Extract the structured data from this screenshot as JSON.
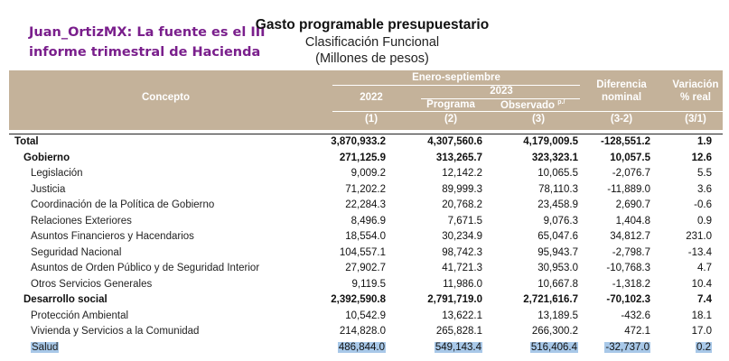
{
  "overlay": {
    "line1": "Juan_OrtizMX: La fuente es el III",
    "line2": "informe trimestral de Hacienda"
  },
  "title": {
    "main": "Gasto programable presupuestario",
    "sub1": "Clasificación Funcional",
    "sub2": "(Millones de pesos)"
  },
  "header": {
    "concepto": "Concepto",
    "period": "Enero-septiembre",
    "year2022": "2022",
    "year2023": "2023",
    "programa": "Programa",
    "observado": "Observado",
    "observado_sup": "p./",
    "diferencia1": "Diferencia",
    "diferencia2": "nominal",
    "variacion1": "Variación",
    "variacion2": "% real",
    "n1": "(1)",
    "n2": "(2)",
    "n3": "(3)",
    "n4": "(3-2)",
    "n5": "(3/1)"
  },
  "rows": [
    {
      "label": "Total",
      "v2022": "3,870,933.2",
      "programa": "4,307,560.6",
      "observado": "4,179,009.5",
      "diferencia": "-128,551.2",
      "variacion": "1.9"
    },
    {
      "label": "Gobierno",
      "v2022": "271,125.9",
      "programa": "313,265.7",
      "observado": "323,323.1",
      "diferencia": "10,057.5",
      "variacion": "12.6"
    },
    {
      "label": "Legislación",
      "v2022": "9,009.2",
      "programa": "12,142.2",
      "observado": "10,065.5",
      "diferencia": "-2,076.7",
      "variacion": "5.5"
    },
    {
      "label": "Justicia",
      "v2022": "71,202.2",
      "programa": "89,999.3",
      "observado": "78,110.3",
      "diferencia": "-11,889.0",
      "variacion": "3.6"
    },
    {
      "label": "Coordinación de la Política de Gobierno",
      "v2022": "22,284.3",
      "programa": "20,768.2",
      "observado": "23,458.9",
      "diferencia": "2,690.7",
      "variacion": "-0.6"
    },
    {
      "label": "Relaciones Exteriores",
      "v2022": "8,496.9",
      "programa": "7,671.5",
      "observado": "9,076.3",
      "diferencia": "1,404.8",
      "variacion": "0.9"
    },
    {
      "label": "Asuntos Financieros y Hacendarios",
      "v2022": "18,554.0",
      "programa": "30,234.9",
      "observado": "65,047.6",
      "diferencia": "34,812.7",
      "variacion": "231.0"
    },
    {
      "label": "Seguridad Nacional",
      "v2022": "104,557.1",
      "programa": "98,742.3",
      "observado": "95,943.7",
      "diferencia": "-2,798.7",
      "variacion": "-13.4"
    },
    {
      "label": "Asuntos de Orden Público y de Seguridad Interior",
      "v2022": "27,902.7",
      "programa": "41,721.3",
      "observado": "30,953.0",
      "diferencia": "-10,768.3",
      "variacion": "4.7"
    },
    {
      "label": "Otros Servicios Generales",
      "v2022": "9,119.5",
      "programa": "11,986.0",
      "observado": "10,667.8",
      "diferencia": "-1,318.2",
      "variacion": "10.4"
    },
    {
      "label": "Desarrollo social",
      "v2022": "2,392,590.8",
      "programa": "2,791,719.0",
      "observado": "2,721,616.7",
      "diferencia": "-70,102.3",
      "variacion": "7.4"
    },
    {
      "label": "Protección Ambiental",
      "v2022": "10,542.9",
      "programa": "13,622.1",
      "observado": "13,189.5",
      "diferencia": "-432.6",
      "variacion": "18.1"
    },
    {
      "label": "Vivienda y Servicios a la Comunidad",
      "v2022": "214,828.0",
      "programa": "265,828.1",
      "observado": "266,300.2",
      "diferencia": "472.1",
      "variacion": "17.0"
    },
    {
      "label": "Salud",
      "v2022": "486,844.0",
      "programa": "549,143.4",
      "observado": "516,406.4",
      "diferencia": "-32,737.0",
      "variacion": "0.2"
    }
  ]
}
